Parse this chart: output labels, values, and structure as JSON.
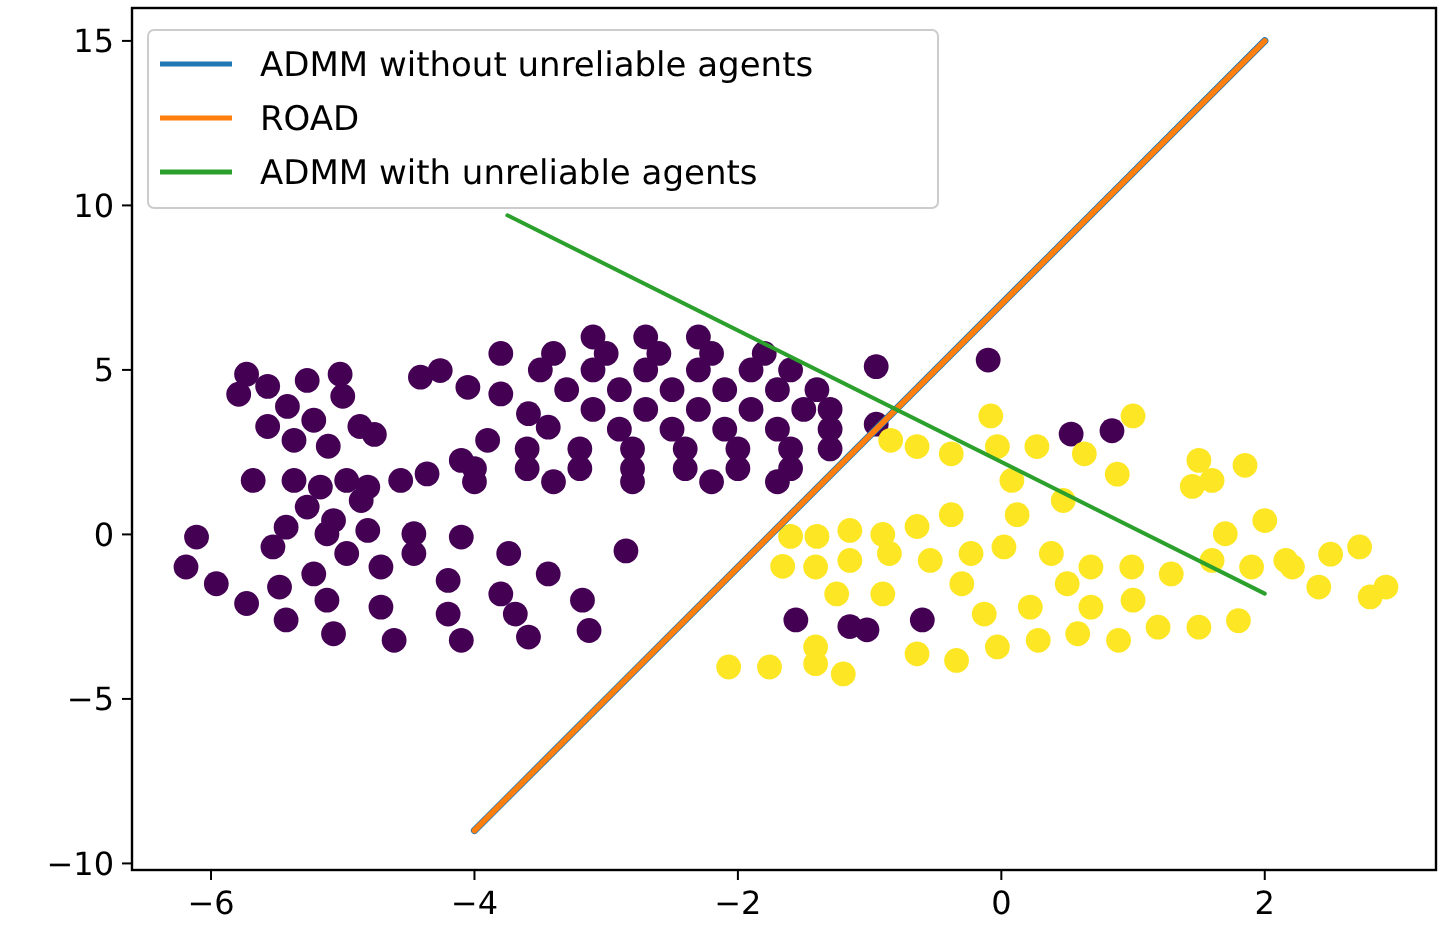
{
  "chart_data": {
    "type": "scatter",
    "xlim": [
      -6.6,
      3.3
    ],
    "ylim": [
      -10.2,
      16
    ],
    "xticks": [
      {
        "value": -6,
        "label": "−6"
      },
      {
        "value": -4,
        "label": "−4"
      },
      {
        "value": -2,
        "label": "−2"
      },
      0,
      2
    ],
    "yticks": [
      {
        "value": -10,
        "label": "−10"
      },
      {
        "value": -5,
        "label": "−5"
      },
      0,
      5,
      10,
      15
    ],
    "grid": false,
    "legend": "top left",
    "series": [
      {
        "marker": "circle",
        "color": "#440154",
        "x": [
          -5.73,
          -5.79,
          -5.57,
          -5.42,
          -5.27,
          -5.02,
          -5.57,
          -5.37,
          -5.11,
          -4.87,
          -4.76,
          -5.22,
          -5.0,
          -4.41,
          -4.26,
          -4.05,
          -3.8,
          -3.59,
          -3.44,
          -3.9,
          -4.1,
          -4.36,
          -4.56,
          -4.81,
          -4.97,
          -5.17,
          -5.68,
          -5.37,
          -4.86,
          -3.1,
          -2.7,
          -2.3,
          -3.8,
          -3.4,
          -3.0,
          -2.6,
          -2.2,
          -1.8,
          -3.5,
          -3.1,
          -2.7,
          -2.3,
          -1.9,
          -1.6,
          -3.3,
          -2.9,
          -2.5,
          -2.1,
          -1.7,
          -1.4,
          -3.1,
          -2.7,
          -2.3,
          -1.9,
          -1.5,
          -1.3,
          -2.9,
          -2.5,
          -2.1,
          -1.7,
          -1.3,
          -3.6,
          -3.2,
          -2.8,
          -2.4,
          -2.0,
          -1.6,
          -1.3,
          -4.0,
          -3.6,
          -3.2,
          -2.8,
          -2.4,
          -2.0,
          -1.6,
          -4.0,
          -3.4,
          -2.8,
          -2.2,
          -1.7,
          -6.11,
          -6.19,
          -5.96,
          -5.73,
          -5.43,
          -5.07,
          -4.61,
          -4.1,
          -3.59,
          -3.13,
          -3.18,
          -3.44,
          -3.74,
          -4.1,
          -4.46,
          -4.81,
          -5.12,
          -5.43,
          -5.53,
          -5.27,
          -5.07,
          -5.22,
          -4.71,
          -4.2,
          -3.8,
          -4.71,
          -4.2,
          -3.69,
          -5.12,
          -5.48,
          -4.46,
          -4.97,
          -2.85,
          -0.95,
          -0.1,
          -0.95,
          0.53,
          0.84,
          -1.56,
          -1.15,
          -1.02,
          -0.6
        ],
        "values": [
          4.87,
          4.26,
          4.5,
          3.89,
          4.68,
          4.87,
          3.28,
          2.86,
          2.68,
          3.28,
          3.04,
          3.47,
          4.2,
          4.78,
          4.98,
          4.47,
          4.27,
          3.67,
          3.26,
          2.86,
          2.25,
          1.84,
          1.64,
          1.44,
          1.64,
          1.44,
          1.64,
          1.64,
          1.03,
          6.0,
          6.0,
          6.0,
          5.5,
          5.5,
          5.5,
          5.5,
          5.5,
          5.5,
          5.0,
          5.0,
          5.0,
          5.0,
          5.0,
          5.0,
          4.4,
          4.4,
          4.4,
          4.4,
          4.4,
          4.4,
          3.8,
          3.8,
          3.8,
          3.8,
          3.8,
          3.8,
          3.2,
          3.2,
          3.2,
          3.2,
          3.2,
          2.6,
          2.6,
          2.6,
          2.6,
          2.6,
          2.6,
          2.6,
          2.0,
          2.0,
          2.0,
          2.0,
          2.0,
          2.0,
          2.0,
          1.6,
          1.6,
          1.6,
          1.6,
          1.6,
          -0.08,
          -0.99,
          -1.5,
          -2.1,
          -2.6,
          -3.02,
          -3.22,
          -3.22,
          -3.12,
          -2.92,
          -2.0,
          -1.2,
          -0.58,
          -0.08,
          0.02,
          0.12,
          0.02,
          0.22,
          -0.38,
          0.83,
          0.42,
          -1.2,
          -0.99,
          -1.4,
          -1.81,
          -2.21,
          -2.42,
          -2.42,
          -2.0,
          -1.6,
          -0.58,
          -0.58,
          -0.5,
          5.1,
          5.3,
          3.35,
          3.05,
          3.15,
          -2.6,
          -2.8,
          -2.9,
          -2.6
        ]
      },
      {
        "marker": "circle",
        "color": "#fde725",
        "x": [
          -0.08,
          1.0,
          -0.84,
          -0.64,
          -0.38,
          -0.03,
          0.27,
          0.63,
          0.88,
          0.08,
          0.47,
          1.5,
          1.6,
          1.45,
          0.12,
          -0.38,
          -0.64,
          -0.9,
          -1.15,
          -1.4,
          -1.6,
          -1.66,
          -1.41,
          -1.15,
          -0.85,
          -0.54,
          -0.23,
          0.02,
          0.38,
          0.68,
          0.99,
          1.29,
          1.6,
          1.9,
          2.21,
          2.41,
          2.72,
          2.92,
          2.0,
          1.7,
          2.16,
          -0.64,
          -0.34,
          -0.03,
          0.28,
          0.58,
          0.89,
          1.19,
          1.5,
          1.8,
          -0.13,
          0.22,
          0.68,
          -0.9,
          -1.25,
          -1.41,
          -2.07,
          -1.76,
          -1.41,
          -1.2,
          0.5,
          1.0,
          -0.3,
          2.5,
          2.8,
          1.85
        ],
        "values": [
          3.6,
          3.6,
          2.86,
          2.67,
          2.45,
          2.67,
          2.67,
          2.45,
          1.83,
          1.64,
          1.03,
          2.25,
          1.64,
          1.46,
          0.6,
          0.6,
          0.24,
          0.0,
          0.12,
          -0.06,
          -0.06,
          -0.97,
          -0.99,
          -0.79,
          -0.58,
          -0.79,
          -0.58,
          -0.38,
          -0.58,
          -0.99,
          -0.99,
          -1.2,
          -0.79,
          -0.99,
          -0.99,
          -1.6,
          -0.38,
          -1.6,
          0.42,
          0.02,
          -0.79,
          -3.63,
          -3.83,
          -3.42,
          -3.22,
          -3.02,
          -3.22,
          -2.82,
          -2.82,
          -2.62,
          -2.42,
          -2.21,
          -2.21,
          -1.81,
          -1.81,
          -3.42,
          -4.03,
          -4.03,
          -3.93,
          -4.24,
          -1.5,
          -2.0,
          -1.5,
          -0.6,
          -1.9,
          2.1
        ]
      },
      {
        "type": "line",
        "name": "ADMM without unreliable agents",
        "color": "#1f77b4",
        "marker": "none",
        "x": [
          -4,
          2
        ],
        "values": [
          -9,
          15
        ]
      },
      {
        "type": "line",
        "name": "ROAD",
        "color": "#ff7f0e",
        "marker": "none",
        "x": [
          -4,
          2
        ],
        "values": [
          -9,
          15
        ]
      },
      {
        "type": "line",
        "name": "ADMM with unreliable agents",
        "color": "#2ca02c",
        "marker": "none",
        "x": [
          -3.75,
          2
        ],
        "values": [
          9.7,
          -1.8
        ]
      }
    ]
  }
}
